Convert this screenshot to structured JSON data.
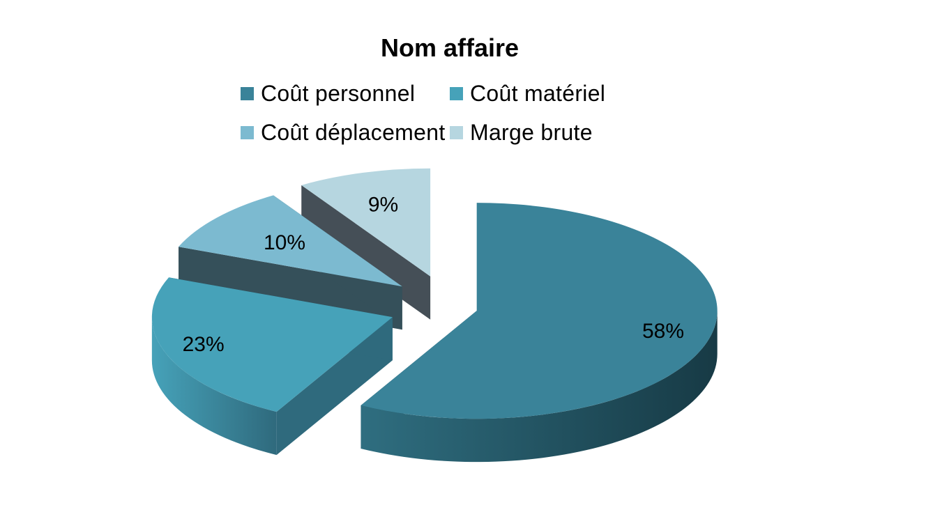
{
  "chart_data": {
    "type": "pie",
    "title": "Nom affaire",
    "categories": [
      "Coût personnel",
      "Coût matériel",
      "Coût déplacement",
      "Marge brute"
    ],
    "values": [
      58,
      23,
      10,
      9
    ],
    "data_labels": [
      "58%",
      "23%",
      "10%",
      "9%"
    ],
    "colors": [
      "#3a8399",
      "#46a2b9",
      "#7cbad0",
      "#b6d6e0"
    ],
    "side_colors": [
      "#1f4653",
      "#2f6a7d",
      "#35505a",
      "#454f57"
    ],
    "style": "3d-exploded",
    "legend_position": "top",
    "xlabel": "",
    "ylabel": ""
  }
}
